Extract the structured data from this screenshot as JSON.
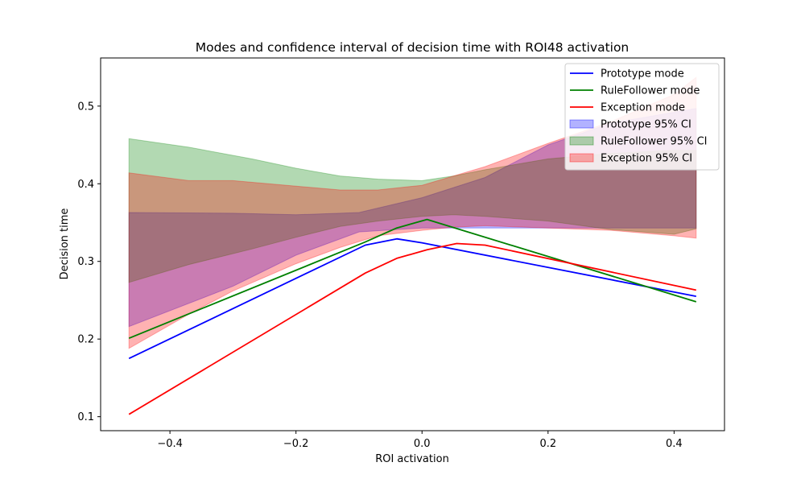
{
  "chart_data": {
    "type": "line",
    "title": "Modes and confidence interval of decision time with ROI48 activation",
    "xlabel": "ROI activation",
    "ylabel": "Decision time",
    "xlim": [
      -0.51,
      0.48
    ],
    "ylim": [
      0.082,
      0.562
    ],
    "xticks": [
      -0.4,
      -0.2,
      0.0,
      0.2,
      0.4
    ],
    "xtick_labels": [
      "−0.4",
      "−0.2",
      "0.0",
      "0.2",
      "0.4"
    ],
    "yticks": [
      0.1,
      0.2,
      0.3,
      0.4,
      0.5
    ],
    "ytick_labels": [
      "0.1",
      "0.2",
      "0.3",
      "0.4",
      "0.5"
    ],
    "grid": false,
    "legend_position": "top-right",
    "series": [
      {
        "name": "Prototype mode",
        "kind": "line",
        "color": "#0000ff",
        "x": [
          -0.465,
          -0.09,
          -0.04,
          0.0,
          0.435
        ],
        "y": [
          0.175,
          0.321,
          0.329,
          0.324,
          0.255
        ]
      },
      {
        "name": "RuleFollower mode",
        "kind": "line",
        "color": "#008000",
        "x": [
          -0.465,
          -0.09,
          -0.04,
          0.008,
          0.435
        ],
        "y": [
          0.201,
          0.325,
          0.343,
          0.354,
          0.248
        ]
      },
      {
        "name": "Exception mode",
        "kind": "line",
        "color": "#ff0000",
        "x": [
          -0.465,
          -0.09,
          -0.04,
          0.008,
          0.055,
          0.1,
          0.435
        ],
        "y": [
          0.103,
          0.285,
          0.304,
          0.315,
          0.323,
          0.321,
          0.263
        ]
      },
      {
        "name": "Prototype 95% CI",
        "kind": "band",
        "color": "#0000ff",
        "x": [
          -0.465,
          -0.3,
          -0.2,
          -0.1,
          0.0,
          0.1,
          0.2,
          0.3,
          0.435
        ],
        "lower": [
          0.216,
          0.268,
          0.308,
          0.338,
          0.343,
          0.343,
          0.343,
          0.343,
          0.343
        ],
        "upper": [
          0.363,
          0.362,
          0.36,
          0.363,
          0.382,
          0.408,
          0.45,
          0.478,
          0.497
        ]
      },
      {
        "name": "RuleFollower 95% CI",
        "kind": "band",
        "color": "#008000",
        "x": [
          -0.465,
          -0.37,
          -0.27,
          -0.2,
          -0.13,
          -0.07,
          0.0,
          0.05,
          0.1,
          0.2,
          0.3,
          0.4,
          0.435
        ],
        "lower": [
          0.273,
          0.296,
          0.316,
          0.331,
          0.345,
          0.352,
          0.358,
          0.36,
          0.358,
          0.352,
          0.341,
          0.335,
          0.342
        ],
        "upper": [
          0.458,
          0.447,
          0.432,
          0.42,
          0.41,
          0.406,
          0.404,
          0.41,
          0.418,
          0.432,
          0.439,
          0.443,
          0.443
        ]
      },
      {
        "name": "Exception 95% CI",
        "kind": "band",
        "color": "#ff0000",
        "x": [
          -0.465,
          -0.37,
          -0.3,
          -0.2,
          -0.13,
          -0.07,
          0.0,
          0.05,
          0.1,
          0.2,
          0.3,
          0.4,
          0.435
        ],
        "lower": [
          0.188,
          0.232,
          0.262,
          0.297,
          0.318,
          0.333,
          0.34,
          0.344,
          0.346,
          0.343,
          0.34,
          0.333,
          0.33
        ],
        "upper": [
          0.414,
          0.404,
          0.404,
          0.397,
          0.392,
          0.392,
          0.398,
          0.41,
          0.422,
          0.452,
          0.48,
          0.515,
          0.537
        ]
      }
    ]
  }
}
